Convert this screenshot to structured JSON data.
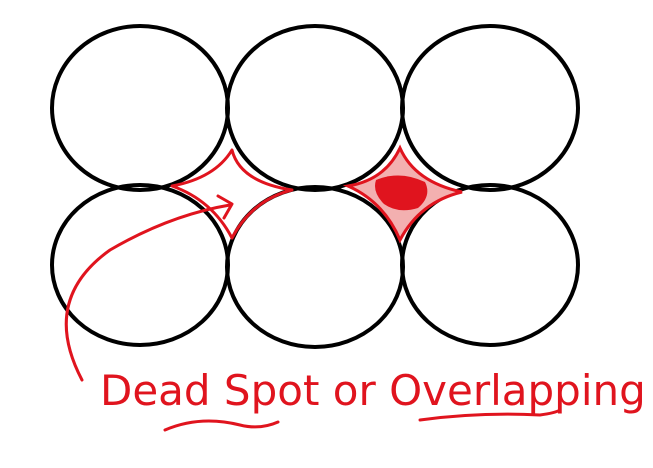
{
  "annotation": "Dead Spot or Overlapping"
}
